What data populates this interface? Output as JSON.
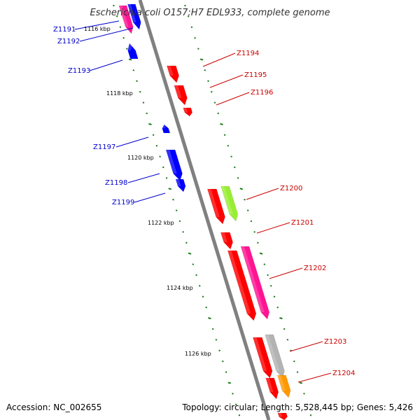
{
  "title": "Escherichia coli O157:H7 EDL933, complete genome",
  "footer": {
    "accession": "Accession: NC_002655",
    "summary": "Topology: circular; Length: 5,528,445 bp; Genes: 5,426"
  },
  "colors": {
    "backbone": "#808080",
    "tick": "#1a7a1a",
    "forward_label": "#cc0000",
    "reverse_label": "#0000cc",
    "red": "#ff0000",
    "blue": "#0000ff",
    "pink": "#ff1493",
    "lime": "#99ee33",
    "gray": "#b3b3b3",
    "orange": "#ff9900"
  },
  "kbp_labels": [
    "1116 kbp",
    "1118 kbp",
    "1120 kbp",
    "1122 kbp",
    "1124 kbp",
    "1126 kbp"
  ],
  "genes": [
    {
      "name": "Z1191",
      "strand": "reverse",
      "color": "pink"
    },
    {
      "name": "Z1192",
      "strand": "reverse",
      "color": "blue"
    },
    {
      "name": "Z1193",
      "strand": "reverse",
      "color": "blue"
    },
    {
      "name": "Z1194",
      "strand": "forward",
      "color": "red"
    },
    {
      "name": "Z1195",
      "strand": "forward",
      "color": "red"
    },
    {
      "name": "Z1196",
      "strand": "forward",
      "color": "red"
    },
    {
      "name": "Z1197",
      "strand": "reverse",
      "color": "blue"
    },
    {
      "name": "Z1198",
      "strand": "reverse",
      "color": "blue"
    },
    {
      "name": "Z1199",
      "strand": "reverse",
      "color": "blue"
    },
    {
      "name": "Z1200",
      "strand": "forward",
      "color": "red"
    },
    {
      "name": "Z1201",
      "strand": "forward",
      "color": "red"
    },
    {
      "name": "Z1202",
      "strand": "forward",
      "color": "red"
    },
    {
      "name": "Z1203",
      "strand": "forward",
      "color": "red"
    },
    {
      "name": "Z1204",
      "strand": "forward",
      "color": "red"
    }
  ]
}
